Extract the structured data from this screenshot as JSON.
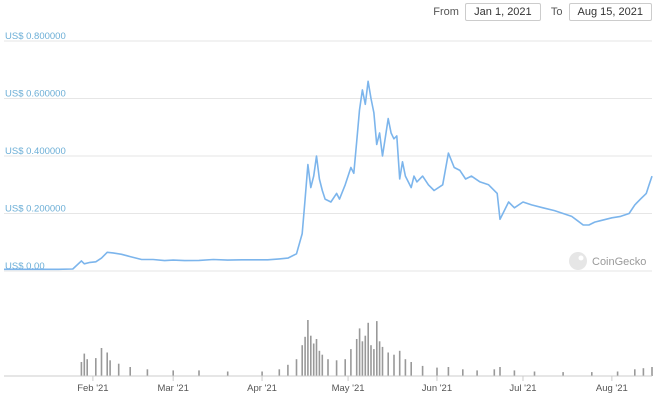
{
  "date_range": {
    "from_label": "From",
    "from_value": "Jan 1, 2021",
    "to_label": "To",
    "to_value": "Aug 15, 2021"
  },
  "watermark": "CoinGecko",
  "colors": {
    "line": "#7cb5ec",
    "grid": "#e6e6e6",
    "volume": "#999999",
    "ytick": "#6baed6"
  },
  "chart_data": {
    "type": "line",
    "title": "",
    "xlabel": "",
    "ylabel": "",
    "ylim": [
      0,
      0.8
    ],
    "y_tick_values": [
      0,
      0.2,
      0.4,
      0.6,
      0.8
    ],
    "y_tick_labels": [
      "US$ 0.00",
      "US$ 0.200000",
      "US$ 0.400000",
      "US$ 0.600000",
      "US$ 0.800000"
    ],
    "x_tick_labels": [
      "Feb '21",
      "Mar '21",
      "Apr '21",
      "May '21",
      "Jun '21",
      "Jul '21",
      "Aug '21"
    ],
    "x_tick_dates": [
      "2021-02-01",
      "2021-03-01",
      "2021-04-01",
      "2021-05-01",
      "2021-06-01",
      "2021-07-01",
      "2021-08-01"
    ],
    "xlim": [
      "2021-01-01",
      "2021-08-15"
    ],
    "series": [
      {
        "values": [
          [
            "2021-01-01",
            0.006
          ],
          [
            "2021-01-05",
            0.006
          ],
          [
            "2021-01-10",
            0.006
          ],
          [
            "2021-01-15",
            0.006
          ],
          [
            "2021-01-20",
            0.006
          ],
          [
            "2021-01-25",
            0.007
          ],
          [
            "2021-01-28",
            0.035
          ],
          [
            "2021-01-29",
            0.025
          ],
          [
            "2021-01-31",
            0.03
          ],
          [
            "2021-02-02",
            0.032
          ],
          [
            "2021-02-04",
            0.045
          ],
          [
            "2021-02-06",
            0.065
          ],
          [
            "2021-02-08",
            0.063
          ],
          [
            "2021-02-11",
            0.058
          ],
          [
            "2021-02-14",
            0.05
          ],
          [
            "2021-02-18",
            0.04
          ],
          [
            "2021-02-22",
            0.04
          ],
          [
            "2021-02-26",
            0.036
          ],
          [
            "2021-03-01",
            0.038
          ],
          [
            "2021-03-05",
            0.036
          ],
          [
            "2021-03-10",
            0.037
          ],
          [
            "2021-03-15",
            0.04
          ],
          [
            "2021-03-20",
            0.038
          ],
          [
            "2021-03-25",
            0.039
          ],
          [
            "2021-03-30",
            0.039
          ],
          [
            "2021-04-03",
            0.039
          ],
          [
            "2021-04-07",
            0.042
          ],
          [
            "2021-04-10",
            0.045
          ],
          [
            "2021-04-13",
            0.06
          ],
          [
            "2021-04-15",
            0.13
          ],
          [
            "2021-04-16",
            0.25
          ],
          [
            "2021-04-17",
            0.37
          ],
          [
            "2021-04-18",
            0.29
          ],
          [
            "2021-04-19",
            0.33
          ],
          [
            "2021-04-20",
            0.4
          ],
          [
            "2021-04-21",
            0.32
          ],
          [
            "2021-04-22",
            0.28
          ],
          [
            "2021-04-23",
            0.25
          ],
          [
            "2021-04-25",
            0.24
          ],
          [
            "2021-04-27",
            0.27
          ],
          [
            "2021-04-28",
            0.25
          ],
          [
            "2021-04-30",
            0.3
          ],
          [
            "2021-05-02",
            0.36
          ],
          [
            "2021-05-03",
            0.34
          ],
          [
            "2021-05-04",
            0.45
          ],
          [
            "2021-05-05",
            0.56
          ],
          [
            "2021-05-06",
            0.63
          ],
          [
            "2021-05-07",
            0.58
          ],
          [
            "2021-05-08",
            0.66
          ],
          [
            "2021-05-09",
            0.6
          ],
          [
            "2021-05-10",
            0.55
          ],
          [
            "2021-05-11",
            0.44
          ],
          [
            "2021-05-12",
            0.48
          ],
          [
            "2021-05-13",
            0.4
          ],
          [
            "2021-05-15",
            0.53
          ],
          [
            "2021-05-16",
            0.48
          ],
          [
            "2021-05-17",
            0.46
          ],
          [
            "2021-05-18",
            0.47
          ],
          [
            "2021-05-19",
            0.32
          ],
          [
            "2021-05-20",
            0.38
          ],
          [
            "2021-05-21",
            0.33
          ],
          [
            "2021-05-23",
            0.29
          ],
          [
            "2021-05-24",
            0.33
          ],
          [
            "2021-05-25",
            0.31
          ],
          [
            "2021-05-27",
            0.33
          ],
          [
            "2021-05-29",
            0.3
          ],
          [
            "2021-05-31",
            0.28
          ],
          [
            "2021-06-03",
            0.3
          ],
          [
            "2021-06-05",
            0.41
          ],
          [
            "2021-06-07",
            0.36
          ],
          [
            "2021-06-09",
            0.35
          ],
          [
            "2021-06-11",
            0.32
          ],
          [
            "2021-06-13",
            0.33
          ],
          [
            "2021-06-16",
            0.31
          ],
          [
            "2021-06-19",
            0.3
          ],
          [
            "2021-06-22",
            0.27
          ],
          [
            "2021-06-23",
            0.18
          ],
          [
            "2021-06-24",
            0.2
          ],
          [
            "2021-06-26",
            0.24
          ],
          [
            "2021-06-28",
            0.22
          ],
          [
            "2021-07-01",
            0.24
          ],
          [
            "2021-07-04",
            0.23
          ],
          [
            "2021-07-08",
            0.22
          ],
          [
            "2021-07-12",
            0.21
          ],
          [
            "2021-07-15",
            0.2
          ],
          [
            "2021-07-18",
            0.19
          ],
          [
            "2021-07-20",
            0.175
          ],
          [
            "2021-07-22",
            0.16
          ],
          [
            "2021-07-24",
            0.16
          ],
          [
            "2021-07-26",
            0.17
          ],
          [
            "2021-07-28",
            0.175
          ],
          [
            "2021-08-01",
            0.185
          ],
          [
            "2021-08-04",
            0.19
          ],
          [
            "2021-08-07",
            0.2
          ],
          [
            "2021-08-09",
            0.23
          ],
          [
            "2021-08-11",
            0.25
          ],
          [
            "2021-08-13",
            0.27
          ],
          [
            "2021-08-14",
            0.3
          ],
          [
            "2021-08-15",
            0.33
          ]
        ]
      }
    ],
    "volume": {
      "values": [
        [
          "2021-01-28",
          0.25
        ],
        [
          "2021-01-29",
          0.4
        ],
        [
          "2021-01-30",
          0.3
        ],
        [
          "2021-02-02",
          0.32
        ],
        [
          "2021-02-04",
          0.5
        ],
        [
          "2021-02-06",
          0.42
        ],
        [
          "2021-02-07",
          0.28
        ],
        [
          "2021-02-10",
          0.22
        ],
        [
          "2021-02-14",
          0.16
        ],
        [
          "2021-02-20",
          0.12
        ],
        [
          "2021-03-01",
          0.1
        ],
        [
          "2021-03-10",
          0.1
        ],
        [
          "2021-03-20",
          0.08
        ],
        [
          "2021-04-01",
          0.08
        ],
        [
          "2021-04-07",
          0.12
        ],
        [
          "2021-04-10",
          0.2
        ],
        [
          "2021-04-13",
          0.3
        ],
        [
          "2021-04-15",
          0.55
        ],
        [
          "2021-04-16",
          0.7
        ],
        [
          "2021-04-17",
          1.0
        ],
        [
          "2021-04-18",
          0.72
        ],
        [
          "2021-04-19",
          0.58
        ],
        [
          "2021-04-20",
          0.66
        ],
        [
          "2021-04-21",
          0.45
        ],
        [
          "2021-04-22",
          0.38
        ],
        [
          "2021-04-24",
          0.3
        ],
        [
          "2021-04-27",
          0.28
        ],
        [
          "2021-04-30",
          0.3
        ],
        [
          "2021-05-02",
          0.48
        ],
        [
          "2021-05-04",
          0.66
        ],
        [
          "2021-05-05",
          0.85
        ],
        [
          "2021-05-06",
          0.62
        ],
        [
          "2021-05-07",
          0.72
        ],
        [
          "2021-05-08",
          0.95
        ],
        [
          "2021-05-09",
          0.55
        ],
        [
          "2021-05-10",
          0.48
        ],
        [
          "2021-05-11",
          0.98
        ],
        [
          "2021-05-12",
          0.62
        ],
        [
          "2021-05-13",
          0.52
        ],
        [
          "2021-05-15",
          0.42
        ],
        [
          "2021-05-17",
          0.38
        ],
        [
          "2021-05-19",
          0.45
        ],
        [
          "2021-05-21",
          0.3
        ],
        [
          "2021-05-23",
          0.25
        ],
        [
          "2021-05-27",
          0.18
        ],
        [
          "2021-06-01",
          0.15
        ],
        [
          "2021-06-05",
          0.16
        ],
        [
          "2021-06-10",
          0.12
        ],
        [
          "2021-06-15",
          0.1
        ],
        [
          "2021-06-21",
          0.12
        ],
        [
          "2021-06-23",
          0.16
        ],
        [
          "2021-06-28",
          0.1
        ],
        [
          "2021-07-05",
          0.08
        ],
        [
          "2021-07-15",
          0.07
        ],
        [
          "2021-07-25",
          0.07
        ],
        [
          "2021-08-03",
          0.08
        ],
        [
          "2021-08-09",
          0.12
        ],
        [
          "2021-08-12",
          0.14
        ],
        [
          "2021-08-15",
          0.16
        ]
      ]
    },
    "grid": true,
    "legend": "none"
  }
}
